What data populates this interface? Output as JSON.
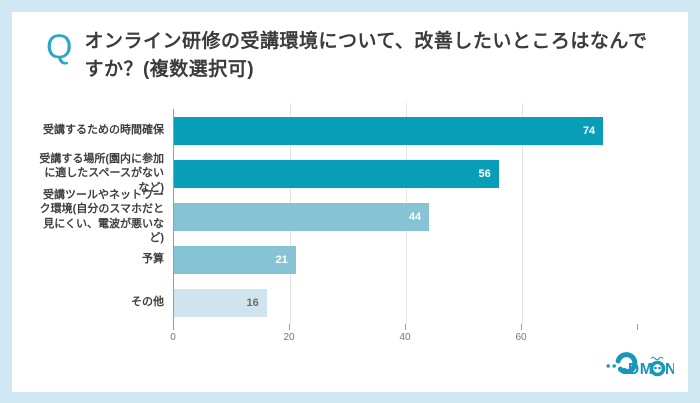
{
  "question": {
    "icon_label": "Q",
    "title": "オンライン研修の受講環境について、改善したいところはなんですか？(複数選択可)"
  },
  "chart_data": {
    "type": "bar",
    "orientation": "horizontal",
    "title": "",
    "xlabel": "",
    "ylabel": "",
    "categories": [
      "受講するための時間確保",
      "受講する場所(園内に参加に適したスペースがないなど)",
      "受講ツールやネットワーク環境(自分のスマホだと見にくい、電波が悪いなど)",
      "予算",
      "その他"
    ],
    "values": [
      74,
      56,
      44,
      21,
      16
    ],
    "bar_colors": [
      "#089eb8",
      "#089eb8",
      "#85c3d5",
      "#85c3d5",
      "#cfe4ed"
    ],
    "value_label_colors": [
      "#ffffff",
      "#ffffff",
      "#ffffff",
      "#ffffff",
      "#6b6b6b"
    ],
    "xlim": [
      0,
      80
    ],
    "x_ticks": [
      "0",
      "20",
      "40",
      "60"
    ],
    "grid": true,
    "legend_position": "none"
  },
  "footer": {
    "logo_text": "CODMON"
  },
  "theme": {
    "background": "#cfe8f3",
    "card": "#ffffff",
    "accent": "#089eb8",
    "grid_color": "#e3e3e3",
    "axis_color": "#9b9b9b",
    "title_color": "#3c3c3c",
    "tick_color": "#757575",
    "logo_color": "#1798b6"
  }
}
